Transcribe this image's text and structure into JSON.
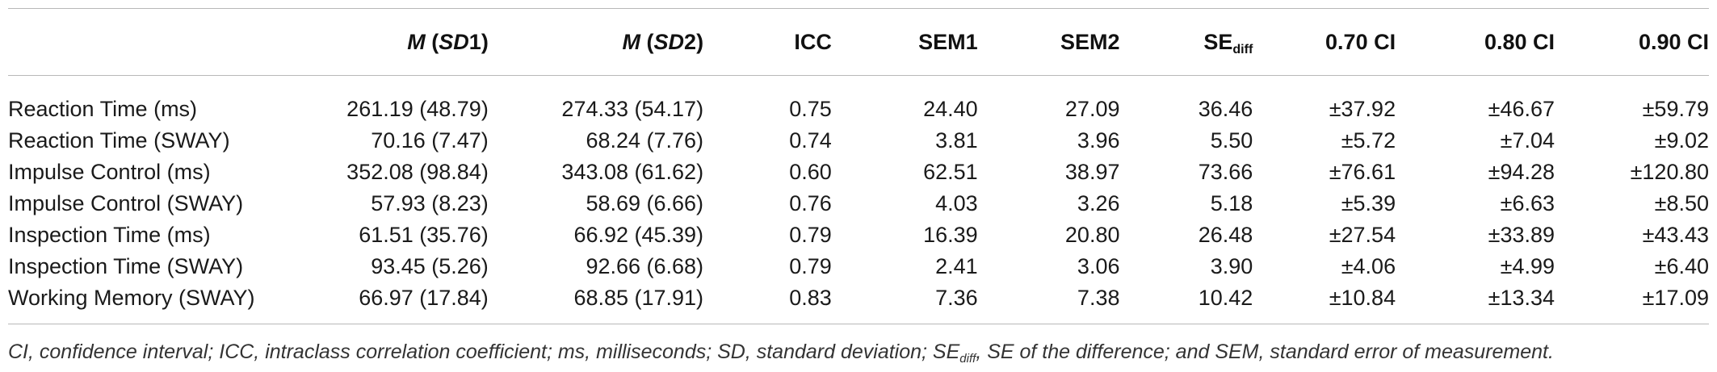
{
  "table": {
    "headers": {
      "m_sd1": {
        "m": "M",
        "open": " (",
        "sd": "SD",
        "num": "1",
        "close": ")"
      },
      "m_sd2": {
        "m": "M",
        "open": " (",
        "sd": "SD",
        "num": "2",
        "close": ")"
      },
      "icc": "ICC",
      "sem1": "SEM1",
      "sem2": "SEM2",
      "se_diff": {
        "base": "SE",
        "sub": "diff"
      },
      "ci70": "0.70 CI",
      "ci80": "0.80 CI",
      "ci90": "0.90 CI"
    },
    "rows": [
      {
        "label": "Reaction Time (ms)",
        "m_sd1": "261.19 (48.79)",
        "m_sd2": "274.33 (54.17)",
        "icc": "0.75",
        "sem1": "24.40",
        "sem2": "27.09",
        "se_diff": "36.46",
        "ci70": "±37.92",
        "ci80": "±46.67",
        "ci90": "±59.79"
      },
      {
        "label": "Reaction Time (SWAY)",
        "m_sd1": "70.16 (7.47)",
        "m_sd2": "68.24 (7.76)",
        "icc": "0.74",
        "sem1": "3.81",
        "sem2": "3.96",
        "se_diff": "5.50",
        "ci70": "±5.72",
        "ci80": "±7.04",
        "ci90": "±9.02"
      },
      {
        "label": "Impulse Control (ms)",
        "m_sd1": "352.08 (98.84)",
        "m_sd2": "343.08 (61.62)",
        "icc": "0.60",
        "sem1": "62.51",
        "sem2": "38.97",
        "se_diff": "73.66",
        "ci70": "±76.61",
        "ci80": "±94.28",
        "ci90": "±120.80"
      },
      {
        "label": "Impulse Control (SWAY)",
        "m_sd1": "57.93 (8.23)",
        "m_sd2": "58.69 (6.66)",
        "icc": "0.76",
        "sem1": "4.03",
        "sem2": "3.26",
        "se_diff": "5.18",
        "ci70": "±5.39",
        "ci80": "±6.63",
        "ci90": "±8.50"
      },
      {
        "label": "Inspection Time (ms)",
        "m_sd1": "61.51 (35.76)",
        "m_sd2": "66.92 (45.39)",
        "icc": "0.79",
        "sem1": "16.39",
        "sem2": "20.80",
        "se_diff": "26.48",
        "ci70": "±27.54",
        "ci80": "±33.89",
        "ci90": "±43.43"
      },
      {
        "label": "Inspection Time (SWAY)",
        "m_sd1": "93.45 (5.26)",
        "m_sd2": "92.66 (6.68)",
        "icc": "0.79",
        "sem1": "2.41",
        "sem2": "3.06",
        "se_diff": "3.90",
        "ci70": "±4.06",
        "ci80": "±4.99",
        "ci90": "±6.40"
      },
      {
        "label": "Working Memory (SWAY)",
        "m_sd1": "66.97 (17.84)",
        "m_sd2": "68.85 (17.91)",
        "icc": "0.83",
        "sem1": "7.36",
        "sem2": "7.38",
        "se_diff": "10.42",
        "ci70": "±10.84",
        "ci80": "±13.34",
        "ci90": "±17.09"
      }
    ]
  },
  "footnote": {
    "before": "CI, confidence interval; ICC, intraclass correlation coefficient; ms, milliseconds; SD, standard deviation; SE",
    "sub": "diff",
    "after": ", SE of the difference; and SEM, standard error of measurement."
  }
}
